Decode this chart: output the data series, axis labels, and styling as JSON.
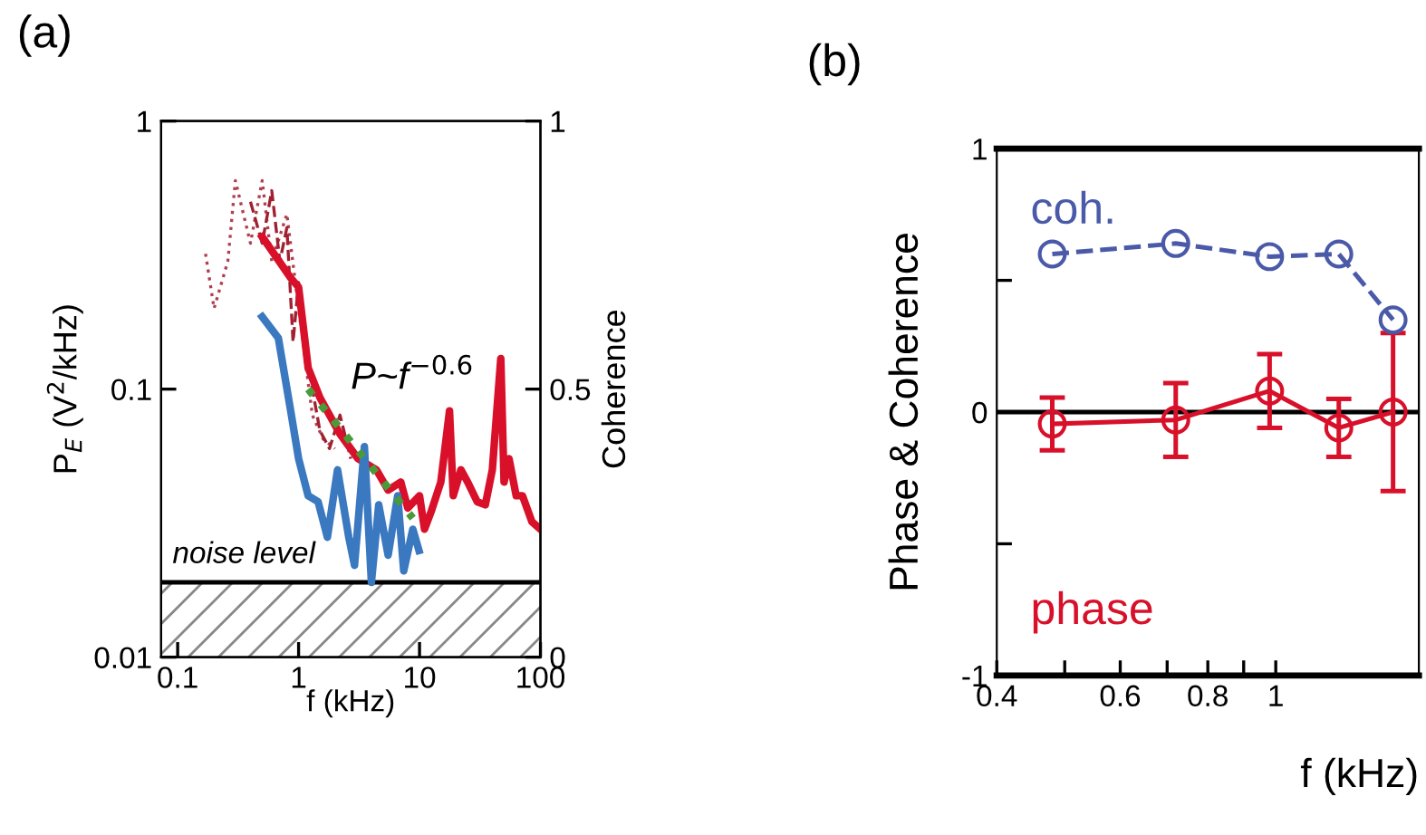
{
  "chart_data": [
    {
      "type": "line",
      "title": "(a)",
      "xlabel": "f (kHz)",
      "ylabel": "P$_{E}$ (V$^{2}$/kHz)",
      "y2label": "Coherence",
      "log": "xy",
      "grid": false,
      "xlim": [
        0.073,
        100
      ],
      "xticks": [
        0.1,
        1,
        10,
        100
      ],
      "ylim": [
        0.01,
        1
      ],
      "yticks": [
        0.01,
        0.1,
        1
      ],
      "y2lim": [
        0,
        1
      ],
      "y2ticks": [
        0,
        0.5,
        1
      ],
      "annotations": [
        "P~f$^{−0.6}$"
      ],
      "ref_lines": [
        {
          "axis": "y",
          "value": 0.019,
          "label": "noise level",
          "color": "#000000"
        }
      ],
      "bands": [
        {
          "axis": "y",
          "from": 0.01,
          "to": 0.019,
          "color": "#888888"
        }
      ],
      "series": [
        {
          "color": "#b04050",
          "line_style": "dotted",
          "x": [
            0.17,
            0.2,
            0.26,
            0.3,
            0.4,
            0.5,
            0.6,
            0.8,
            1.0,
            1.3,
            1.6,
            2.0
          ],
          "values": [
            0.32,
            0.2,
            0.3,
            0.6,
            0.35,
            0.6,
            0.3,
            0.45,
            0.2,
            0.08,
            0.065,
            0.06
          ]
        },
        {
          "color": "#a02030",
          "line_style": "dashed",
          "x": [
            0.4,
            0.5,
            0.6,
            0.7,
            0.8,
            0.9,
            1.0,
            1.3,
            1.5,
            1.8,
            2.2,
            2.7
          ],
          "values": [
            0.5,
            0.35,
            0.55,
            0.3,
            0.4,
            0.15,
            0.25,
            0.1,
            0.07,
            0.06,
            0.08,
            0.055
          ]
        },
        {
          "color": "#d8102a",
          "line_style": "solid",
          "x": [
            0.5,
            0.86,
            1.0,
            1.2,
            1.5,
            2.2,
            3.1,
            4.4,
            5.5,
            7,
            8,
            10,
            11,
            12.5,
            15,
            17.7,
            19,
            22,
            25,
            30,
            35,
            40,
            47,
            50,
            55,
            63,
            71,
            85,
            100
          ],
          "values": [
            0.37,
            0.26,
            0.24,
            0.12,
            0.093,
            0.068,
            0.055,
            0.05,
            0.042,
            0.045,
            0.036,
            0.04,
            0.03,
            0.035,
            0.045,
            0.083,
            0.04,
            0.05,
            0.045,
            0.038,
            0.037,
            0.05,
            0.13,
            0.045,
            0.055,
            0.04,
            0.04,
            0.032,
            0.03
          ]
        },
        {
          "color": "#3a78c0",
          "line_style": "solid",
          "x": [
            0.5,
            0.68,
            0.86,
            1.0,
            1.2,
            1.45,
            1.73,
            2.1,
            2.6,
            2.9,
            3.5,
            4.0,
            4.6,
            5.5,
            6.6,
            7.4,
            8.8,
            9.9
          ],
          "values": [
            0.186,
            0.155,
            0.083,
            0.055,
            0.04,
            0.038,
            0.028,
            0.05,
            0.028,
            0.022,
            0.061,
            0.019,
            0.037,
            0.024,
            0.04,
            0.021,
            0.03,
            0.025
          ]
        },
        {
          "color": "#4a9a3a",
          "line_style": "dotted",
          "x": [
            1.2,
            8.8
          ],
          "values": [
            0.1,
            0.033
          ]
        }
      ]
    },
    {
      "type": "line",
      "title": "(b)",
      "xlabel": "f (kHz)",
      "ylabel": "Phase & Coherence",
      "log": "x",
      "grid": false,
      "xlim": [
        0.4,
        1.6
      ],
      "xticks": [
        0.4,
        {
          "value": 0.5,
          "label": null
        },
        0.6,
        {
          "value": 0.7,
          "label": null
        },
        0.8,
        {
          "value": 0.9,
          "label": null
        },
        1
      ],
      "ylim": [
        -1,
        1
      ],
      "yticks": [
        -1,
        {
          "value": -0.5,
          "label": null
        },
        0,
        {
          "value": 0.5,
          "label": null
        },
        1
      ],
      "ref_lines": [
        {
          "axis": "y",
          "value": 0,
          "color": "#000000"
        }
      ],
      "series": [
        {
          "name": "coh.",
          "color": "#4a5aa8",
          "line_style": "dashed",
          "marker": "circle",
          "x": [
            0.48,
            0.72,
            0.98,
            1.23,
            1.47
          ],
          "values": [
            0.6,
            0.64,
            0.59,
            0.6,
            0.35
          ]
        },
        {
          "name": "phase",
          "color": "#d8102a",
          "line_style": "solid",
          "marker": "circle",
          "x": [
            0.48,
            0.72,
            0.98,
            1.23,
            1.47
          ],
          "values": [
            -0.045,
            -0.03,
            0.08,
            -0.06,
            0.0
          ],
          "errors": [
            0.1,
            0.14,
            0.14,
            0.11,
            0.3
          ]
        }
      ]
    }
  ]
}
